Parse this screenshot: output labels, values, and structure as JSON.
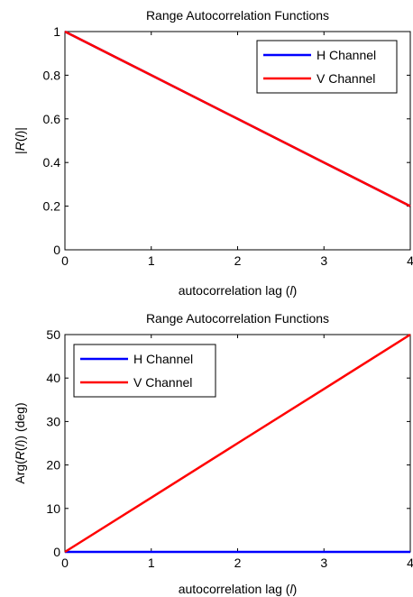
{
  "chart_data": [
    {
      "type": "line",
      "title": "Range Autocorrelation Functions",
      "xlabel": "autocorrelation lag (l)",
      "xlabel_parts": [
        "autocorrelation lag (",
        "l",
        ")"
      ],
      "ylabel": "|R(l)|",
      "ylabel_parts": [
        "|",
        "R",
        "(",
        "l",
        ")|"
      ],
      "xlim": [
        0,
        4
      ],
      "ylim": [
        0,
        1
      ],
      "xticks": [
        0,
        1,
        2,
        3,
        4
      ],
      "xtick_labels": [
        "0",
        "1",
        "2",
        "3",
        "4"
      ],
      "yticks": [
        0,
        0.2,
        0.4,
        0.6,
        0.8,
        1
      ],
      "ytick_labels": [
        "0",
        "0.2",
        "0.4",
        "0.6",
        "0.8",
        "1"
      ],
      "grid": false,
      "legend_position": "top-right",
      "series": [
        {
          "name": "H Channel",
          "color": "#0000ff",
          "x": [
            0,
            1,
            2,
            3,
            4
          ],
          "y": [
            1,
            0.8,
            0.6,
            0.4,
            0.2
          ]
        },
        {
          "name": "V Channel",
          "color": "#ff0000",
          "x": [
            0,
            1,
            2,
            3,
            4
          ],
          "y": [
            1,
            0.8,
            0.6,
            0.4,
            0.2
          ]
        }
      ]
    },
    {
      "type": "line",
      "title": "Range Autocorrelation Functions",
      "xlabel": "autocorrelation lag (l)",
      "xlabel_parts": [
        "autocorrelation lag (",
        "l",
        ")"
      ],
      "ylabel": "Arg(R(l)) (deg)",
      "ylabel_parts": [
        "Arg(",
        "R",
        "(",
        "l",
        ")) (deg)"
      ],
      "xlim": [
        0,
        4
      ],
      "ylim": [
        0,
        50
      ],
      "xticks": [
        0,
        1,
        2,
        3,
        4
      ],
      "xtick_labels": [
        "0",
        "1",
        "2",
        "3",
        "4"
      ],
      "yticks": [
        0,
        10,
        20,
        30,
        40,
        50
      ],
      "ytick_labels": [
        "0",
        "10",
        "20",
        "30",
        "40",
        "50"
      ],
      "grid": false,
      "legend_position": "top-left",
      "series": [
        {
          "name": "H Channel",
          "color": "#0000ff",
          "x": [
            0,
            1,
            2,
            3,
            4
          ],
          "y": [
            0,
            0,
            0,
            0,
            0
          ]
        },
        {
          "name": "V Channel",
          "color": "#ff0000",
          "x": [
            0,
            1,
            2,
            3,
            4
          ],
          "y": [
            0,
            12.5,
            25,
            37.5,
            50
          ]
        }
      ]
    }
  ]
}
